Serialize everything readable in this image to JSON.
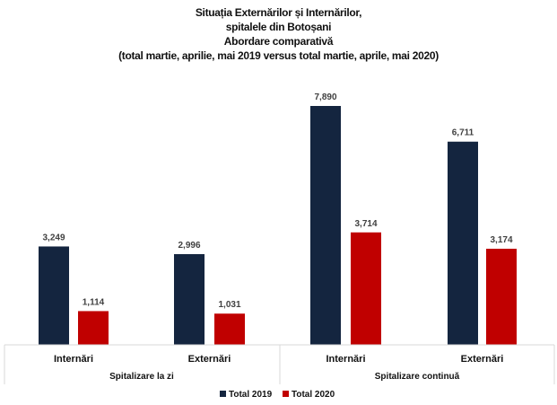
{
  "chart_data": {
    "type": "bar",
    "title": [
      "Situația Externărilor și Internărilor,",
      "spitalele din Botoșani",
      "Abordare comparativă",
      "(total martie, aprilie, mai 2019  versus total martie, aprile, mai 2020)"
    ],
    "categories": [
      "Internări",
      "Externări",
      "Internări",
      "Externări"
    ],
    "groups": [
      {
        "label": "Spitalizare la zi",
        "categories": [
          0,
          1
        ]
      },
      {
        "label": "Spitalizare continuă",
        "categories": [
          2,
          3
        ]
      }
    ],
    "series": [
      {
        "name": "Total 2019",
        "color": "#14253f",
        "values": [
          3249,
          2996,
          7890,
          6711
        ],
        "labels": [
          "3,249",
          "2,996",
          "7,890",
          "6,711"
        ]
      },
      {
        "name": "Total 2020",
        "color": "#c00000",
        "values": [
          1114,
          1031,
          3714,
          3174
        ],
        "labels": [
          "1,114",
          "1,031",
          "3,714",
          "3,174"
        ]
      }
    ],
    "ylim": [
      0,
      8000
    ],
    "grid": false,
    "legend": "bottom"
  }
}
